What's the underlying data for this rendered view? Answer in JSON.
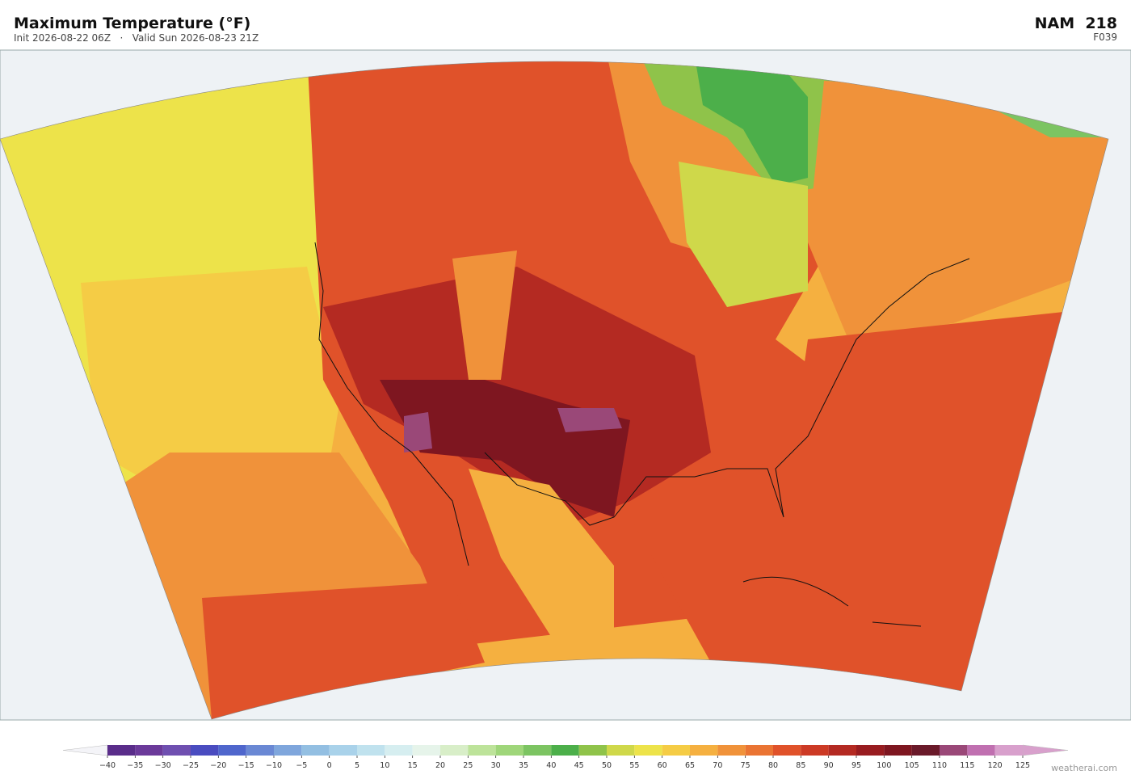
{
  "header": {
    "title": "Maximum Temperature  (°F)",
    "subtitle": "Init 2026-08-22 06Z   ·   Valid Sun 2026-08-23 21Z",
    "model": "NAM  218",
    "forecast_hour": "F039"
  },
  "map": {
    "colorbar": {
      "ticks": [
        {
          "value": -40,
          "label": "−40"
        },
        {
          "value": -35,
          "label": "−35"
        },
        {
          "value": -30,
          "label": "−30"
        },
        {
          "value": -25,
          "label": "−25"
        },
        {
          "value": -20,
          "label": "−20"
        },
        {
          "value": -15,
          "label": "−15"
        },
        {
          "value": -10,
          "label": "−10"
        },
        {
          "value": -5,
          "label": "−5"
        },
        0,
        5,
        10,
        15,
        20,
        25,
        30,
        35,
        40,
        45,
        50,
        55,
        60,
        65,
        70,
        75,
        80,
        85,
        90,
        95,
        100,
        105,
        110,
        115,
        120,
        125
      ],
      "colors": [
        "#5a2d8a",
        "#6b3a9a",
        "#6f4fb0",
        "#4a4cc0",
        "#4f66cc",
        "#6a88d4",
        "#7fa6dc",
        "#93bfe2",
        "#a9d2ea",
        "#c0e2ee",
        "#d6eef0",
        "#e6f4ea",
        "#d8eec8",
        "#bde39a",
        "#9fd67a",
        "#7cc462",
        "#4caf4a",
        "#8fc34a",
        "#cfd84a",
        "#ede34a",
        "#f5cc45",
        "#f5b040",
        "#f0923a",
        "#ea7433",
        "#e0522a",
        "#cc3a25",
        "#b42a22",
        "#981c20",
        "#7e1620",
        "#6a1a2a",
        "#9a4878",
        "#c070b0",
        "#d8a0cc"
      ]
    },
    "watermark": "weatherai.com"
  }
}
